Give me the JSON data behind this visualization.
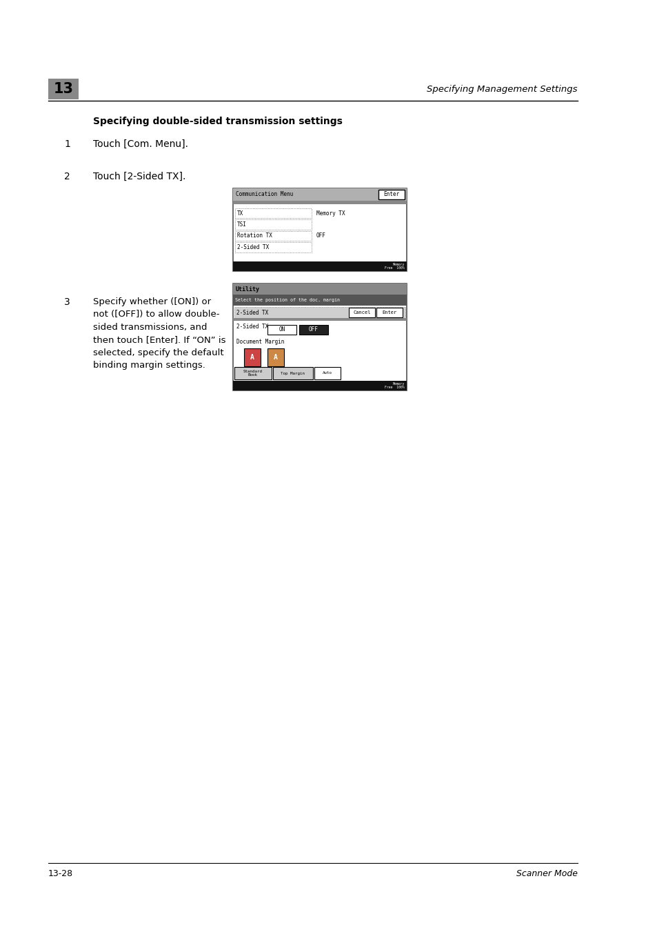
{
  "page_bg": "#ffffff",
  "header_num": "13",
  "header_text": "Specifying Management Settings",
  "section_title": "Specifying double-sided transmission settings",
  "step1_num": "1",
  "step1_text": "Touch [Com. Menu].",
  "step2_num": "2",
  "step2_text": "Touch [2-Sided TX].",
  "step3_num": "3",
  "step3_text": "Specify whether ([ON]) or\nnot ([OFF]) to allow double-\nsided transmissions, and\nthen touch [Enter]. If “ON” is\nselected, specify the default\nbinding margin settings.",
  "footer_left": "13-28",
  "footer_right": "Scanner Mode",
  "screen1": {
    "title": "Communication Menu",
    "enter_btn": "Enter",
    "mem_free": "Memory\nFree  100%"
  },
  "screen2": {
    "title": "Utility",
    "select_text": "Select the position of the doc. margin",
    "mem_free": "Memory\nFree  100%"
  }
}
